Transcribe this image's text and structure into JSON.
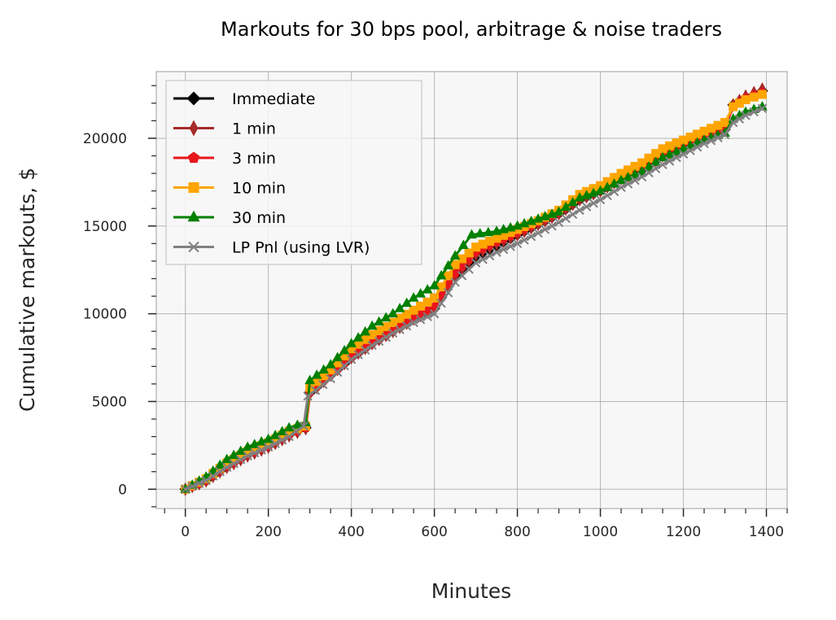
{
  "chart_data": {
    "type": "line",
    "title": "Markouts for 30 bps pool, arbitrage & noise traders",
    "xlabel": "Minutes",
    "ylabel": "Cumulative markouts, $",
    "xlim": [
      -70,
      1450
    ],
    "ylim": [
      -1100,
      23800
    ],
    "xticks": [
      0,
      200,
      400,
      600,
      800,
      1000,
      1200,
      1400
    ],
    "xtick_labels": [
      "0",
      "200",
      "400",
      "600",
      "800",
      "1000",
      "1200",
      "1400"
    ],
    "yticks": [
      0,
      5000,
      10000,
      15000,
      20000
    ],
    "ytick_labels": [
      "0",
      "5000",
      "10000",
      "15000",
      "20000"
    ],
    "grid": true,
    "background": "#f7f7f7",
    "legend_position": "upper-left",
    "series": [
      {
        "name": "Immediate",
        "color": "#000000",
        "marker": "diamond",
        "points": [
          [
            0,
            0
          ],
          [
            50,
            500
          ],
          [
            100,
            1300
          ],
          [
            150,
            1950
          ],
          [
            200,
            2450
          ],
          [
            250,
            3100
          ],
          [
            290,
            3500
          ],
          [
            300,
            5500
          ],
          [
            350,
            6500
          ],
          [
            400,
            7500
          ],
          [
            450,
            8300
          ],
          [
            500,
            9000
          ],
          [
            550,
            9700
          ],
          [
            600,
            10300
          ],
          [
            650,
            12200
          ],
          [
            700,
            13300
          ],
          [
            750,
            13900
          ],
          [
            800,
            14500
          ],
          [
            850,
            15100
          ],
          [
            900,
            15700
          ],
          [
            950,
            16500
          ],
          [
            1000,
            17000
          ],
          [
            1050,
            17700
          ],
          [
            1100,
            18200
          ],
          [
            1150,
            19000
          ],
          [
            1200,
            19500
          ],
          [
            1250,
            20000
          ],
          [
            1300,
            20500
          ],
          [
            1320,
            21900
          ],
          [
            1350,
            22300
          ],
          [
            1390,
            22700
          ]
        ]
      },
      {
        "name": "1 min",
        "color": "#a52a2a",
        "marker": "thin-diamond",
        "points": [
          [
            0,
            0
          ],
          [
            50,
            480
          ],
          [
            100,
            1250
          ],
          [
            150,
            1900
          ],
          [
            200,
            2400
          ],
          [
            250,
            3050
          ],
          [
            290,
            3450
          ],
          [
            300,
            5450
          ],
          [
            350,
            6500
          ],
          [
            400,
            7500
          ],
          [
            450,
            8300
          ],
          [
            500,
            9000
          ],
          [
            550,
            9700
          ],
          [
            600,
            10300
          ],
          [
            650,
            12200
          ],
          [
            700,
            13400
          ],
          [
            750,
            14000
          ],
          [
            800,
            14500
          ],
          [
            850,
            15100
          ],
          [
            900,
            15700
          ],
          [
            950,
            16500
          ],
          [
            1000,
            17000
          ],
          [
            1050,
            17700
          ],
          [
            1100,
            18200
          ],
          [
            1150,
            19000
          ],
          [
            1200,
            19500
          ],
          [
            1250,
            20000
          ],
          [
            1300,
            20500
          ],
          [
            1320,
            21900
          ],
          [
            1350,
            22400
          ],
          [
            1390,
            22800
          ]
        ]
      },
      {
        "name": "3 min",
        "color": "#e8161b",
        "marker": "pentagon",
        "points": [
          [
            0,
            0
          ],
          [
            50,
            500
          ],
          [
            100,
            1300
          ],
          [
            150,
            1950
          ],
          [
            200,
            2450
          ],
          [
            250,
            3100
          ],
          [
            290,
            3500
          ],
          [
            300,
            5550
          ],
          [
            350,
            6550
          ],
          [
            400,
            7550
          ],
          [
            450,
            8350
          ],
          [
            500,
            9050
          ],
          [
            550,
            9750
          ],
          [
            600,
            10400
          ],
          [
            650,
            12300
          ],
          [
            700,
            13500
          ],
          [
            750,
            14100
          ],
          [
            800,
            14600
          ],
          [
            850,
            15200
          ],
          [
            900,
            15800
          ],
          [
            950,
            16600
          ],
          [
            1000,
            17100
          ],
          [
            1050,
            17800
          ],
          [
            1100,
            18300
          ],
          [
            1150,
            19100
          ],
          [
            1200,
            19600
          ],
          [
            1250,
            20100
          ],
          [
            1300,
            20600
          ],
          [
            1320,
            21800
          ],
          [
            1350,
            22300
          ],
          [
            1390,
            22600
          ]
        ]
      },
      {
        "name": "10 min",
        "color": "#ffa500",
        "marker": "square",
        "points": [
          [
            0,
            0
          ],
          [
            50,
            600
          ],
          [
            100,
            1500
          ],
          [
            150,
            2150
          ],
          [
            200,
            2650
          ],
          [
            250,
            3300
          ],
          [
            290,
            3600
          ],
          [
            300,
            5800
          ],
          [
            350,
            6800
          ],
          [
            400,
            8000
          ],
          [
            450,
            8800
          ],
          [
            500,
            9500
          ],
          [
            550,
            10200
          ],
          [
            600,
            10900
          ],
          [
            650,
            12800
          ],
          [
            700,
            13800
          ],
          [
            750,
            14300
          ],
          [
            800,
            14800
          ],
          [
            850,
            15300
          ],
          [
            900,
            15900
          ],
          [
            950,
            16800
          ],
          [
            1000,
            17300
          ],
          [
            1050,
            18000
          ],
          [
            1100,
            18600
          ],
          [
            1150,
            19400
          ],
          [
            1200,
            19900
          ],
          [
            1250,
            20400
          ],
          [
            1300,
            20900
          ],
          [
            1320,
            21800
          ],
          [
            1350,
            22200
          ],
          [
            1390,
            22500
          ]
        ]
      },
      {
        "name": "30 min",
        "color": "#008000",
        "marker": "triangle-up",
        "points": [
          [
            0,
            0
          ],
          [
            50,
            700
          ],
          [
            100,
            1700
          ],
          [
            150,
            2400
          ],
          [
            200,
            2850
          ],
          [
            250,
            3500
          ],
          [
            290,
            3800
          ],
          [
            300,
            6200
          ],
          [
            350,
            7100
          ],
          [
            400,
            8300
          ],
          [
            450,
            9300
          ],
          [
            500,
            10000
          ],
          [
            550,
            10900
          ],
          [
            600,
            11600
          ],
          [
            650,
            13300
          ],
          [
            690,
            14500
          ],
          [
            750,
            14700
          ],
          [
            800,
            15000
          ],
          [
            850,
            15400
          ],
          [
            900,
            15800
          ],
          [
            950,
            16600
          ],
          [
            1000,
            17000
          ],
          [
            1050,
            17600
          ],
          [
            1100,
            18100
          ],
          [
            1150,
            18900
          ],
          [
            1200,
            19400
          ],
          [
            1250,
            19900
          ],
          [
            1300,
            20300
          ],
          [
            1320,
            21100
          ],
          [
            1350,
            21500
          ],
          [
            1390,
            21800
          ]
        ]
      },
      {
        "name": "LP Pnl (using LVR)",
        "color": "#808080",
        "marker": "x",
        "points": [
          [
            0,
            0
          ],
          [
            50,
            500
          ],
          [
            100,
            1250
          ],
          [
            150,
            1900
          ],
          [
            200,
            2400
          ],
          [
            250,
            3000
          ],
          [
            285,
            3600
          ],
          [
            295,
            5300
          ],
          [
            350,
            6300
          ],
          [
            400,
            7400
          ],
          [
            450,
            8200
          ],
          [
            500,
            8900
          ],
          [
            550,
            9500
          ],
          [
            600,
            10000
          ],
          [
            650,
            11800
          ],
          [
            700,
            12900
          ],
          [
            750,
            13500
          ],
          [
            800,
            14000
          ],
          [
            850,
            14600
          ],
          [
            900,
            15200
          ],
          [
            950,
            15900
          ],
          [
            1000,
            16500
          ],
          [
            1050,
            17200
          ],
          [
            1100,
            17800
          ],
          [
            1150,
            18500
          ],
          [
            1200,
            19100
          ],
          [
            1250,
            19700
          ],
          [
            1300,
            20200
          ],
          [
            1320,
            20900
          ],
          [
            1350,
            21300
          ],
          [
            1390,
            21700
          ]
        ]
      }
    ]
  }
}
